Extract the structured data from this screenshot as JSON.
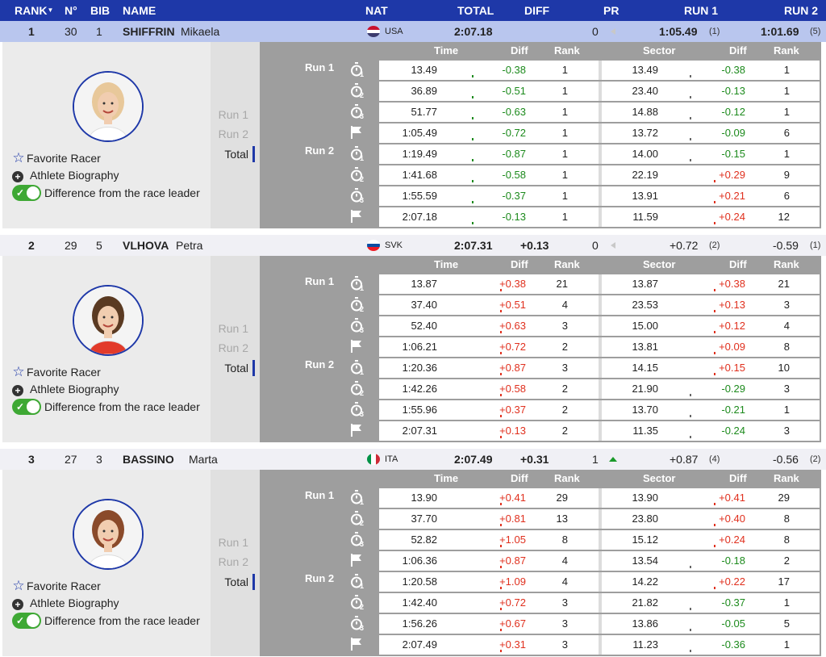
{
  "header": {
    "rank": "RANK",
    "rank_caret": "▼",
    "no": "N°",
    "bib": "BIB",
    "name": "NAME",
    "nat": "NAT",
    "total": "TOTAL",
    "diff": "DIFF",
    "pr": "PR",
    "run1": "RUN 1",
    "run2": "RUN 2"
  },
  "labels": {
    "favorite": "Favorite Racer",
    "bio": "Athlete Biography",
    "diff_toggle": "Difference from the race leader",
    "tab_run1": "Run 1",
    "tab_run2": "Run 2",
    "tab_total": "Total",
    "col_time": "Time",
    "col_diff": "Diff",
    "col_rank": "Rank",
    "col_sector": "Sector",
    "run1": "Run 1",
    "run2": "Run 2"
  },
  "colors": {
    "header_bg": "#1e38a8",
    "highlight_row": "#b9c6ee",
    "positive": "#e0301e",
    "negative": "#1c8a1c",
    "toggle": "#3ea834"
  },
  "athletes": [
    {
      "rank": "1",
      "no": "30",
      "bib": "1",
      "surname": "SHIFFRIN",
      "firstname": "Mikaela",
      "nat": "USA",
      "flag": [
        "#c8102e",
        "#ffffff",
        "#3c3b6e"
      ],
      "total": "2:07.18",
      "diff": "",
      "pr": "0",
      "pr_trend": "none",
      "run1": "1:05.49",
      "run1_rank": "(1)",
      "run2": "1:01.69",
      "run2_rank": "(5)",
      "highlight": true,
      "avatar_icon": "athlete-photo",
      "splits": [
        {
          "time": "13.49",
          "diff": "-0.38",
          "rank": "1",
          "sector": "13.49",
          "sdiff": "-0.38",
          "srank": "1"
        },
        {
          "time": "36.89",
          "diff": "-0.51",
          "rank": "1",
          "sector": "23.40",
          "sdiff": "-0.13",
          "srank": "1"
        },
        {
          "time": "51.77",
          "diff": "-0.63",
          "rank": "1",
          "sector": "14.88",
          "sdiff": "-0.12",
          "srank": "1"
        },
        {
          "time": "1:05.49",
          "diff": "-0.72",
          "rank": "1",
          "sector": "13.72",
          "sdiff": "-0.09",
          "srank": "6"
        },
        {
          "time": "1:19.49",
          "diff": "-0.87",
          "rank": "1",
          "sector": "14.00",
          "sdiff": "-0.15",
          "srank": "1"
        },
        {
          "time": "1:41.68",
          "diff": "-0.58",
          "rank": "1",
          "sector": "22.19",
          "sdiff": "+0.29",
          "srank": "9"
        },
        {
          "time": "1:55.59",
          "diff": "-0.37",
          "rank": "1",
          "sector": "13.91",
          "sdiff": "+0.21",
          "srank": "6"
        },
        {
          "time": "2:07.18",
          "diff": "-0.13",
          "rank": "1",
          "sector": "11.59",
          "sdiff": "+0.24",
          "srank": "12"
        }
      ]
    },
    {
      "rank": "2",
      "no": "29",
      "bib": "5",
      "surname": "VLHOVA",
      "firstname": "Petra",
      "nat": "SVK",
      "flag": [
        "#ffffff",
        "#0b4ea2",
        "#ee1c25"
      ],
      "total": "2:07.31",
      "diff": "+0.13",
      "pr": "0",
      "pr_trend": "none",
      "run1": "+0.72",
      "run1_rank": "(2)",
      "run2": "-0.59",
      "run2_rank": "(1)",
      "highlight": false,
      "avatar_icon": "athlete-photo",
      "splits": [
        {
          "time": "13.87",
          "diff": "+0.38",
          "rank": "21",
          "sector": "13.87",
          "sdiff": "+0.38",
          "srank": "21"
        },
        {
          "time": "37.40",
          "diff": "+0.51",
          "rank": "4",
          "sector": "23.53",
          "sdiff": "+0.13",
          "srank": "3"
        },
        {
          "time": "52.40",
          "diff": "+0.63",
          "rank": "3",
          "sector": "15.00",
          "sdiff": "+0.12",
          "srank": "4"
        },
        {
          "time": "1:06.21",
          "diff": "+0.72",
          "rank": "2",
          "sector": "13.81",
          "sdiff": "+0.09",
          "srank": "8"
        },
        {
          "time": "1:20.36",
          "diff": "+0.87",
          "rank": "3",
          "sector": "14.15",
          "sdiff": "+0.15",
          "srank": "10"
        },
        {
          "time": "1:42.26",
          "diff": "+0.58",
          "rank": "2",
          "sector": "21.90",
          "sdiff": "-0.29",
          "srank": "3"
        },
        {
          "time": "1:55.96",
          "diff": "+0.37",
          "rank": "2",
          "sector": "13.70",
          "sdiff": "-0.21",
          "srank": "1"
        },
        {
          "time": "2:07.31",
          "diff": "+0.13",
          "rank": "2",
          "sector": "11.35",
          "sdiff": "-0.24",
          "srank": "3"
        }
      ]
    },
    {
      "rank": "3",
      "no": "27",
      "bib": "3",
      "surname": "BASSINO",
      "firstname": "Marta",
      "nat": "ITA",
      "flag": [
        "#009246",
        "#ffffff",
        "#ce2b37"
      ],
      "total": "2:07.49",
      "diff": "+0.31",
      "pr": "1",
      "pr_trend": "up",
      "run1": "+0.87",
      "run1_rank": "(4)",
      "run2": "-0.56",
      "run2_rank": "(2)",
      "highlight": false,
      "avatar_icon": "athlete-photo",
      "splits": [
        {
          "time": "13.90",
          "diff": "+0.41",
          "rank": "29",
          "sector": "13.90",
          "sdiff": "+0.41",
          "srank": "29"
        },
        {
          "time": "37.70",
          "diff": "+0.81",
          "rank": "13",
          "sector": "23.80",
          "sdiff": "+0.40",
          "srank": "8"
        },
        {
          "time": "52.82",
          "diff": "+1.05",
          "rank": "8",
          "sector": "15.12",
          "sdiff": "+0.24",
          "srank": "8"
        },
        {
          "time": "1:06.36",
          "diff": "+0.87",
          "rank": "4",
          "sector": "13.54",
          "sdiff": "-0.18",
          "srank": "2"
        },
        {
          "time": "1:20.58",
          "diff": "+1.09",
          "rank": "4",
          "sector": "14.22",
          "sdiff": "+0.22",
          "srank": "17"
        },
        {
          "time": "1:42.40",
          "diff": "+0.72",
          "rank": "3",
          "sector": "21.82",
          "sdiff": "-0.37",
          "srank": "1"
        },
        {
          "time": "1:56.26",
          "diff": "+0.67",
          "rank": "3",
          "sector": "13.86",
          "sdiff": "-0.05",
          "srank": "5"
        },
        {
          "time": "2:07.49",
          "diff": "+0.31",
          "rank": "3",
          "sector": "11.23",
          "sdiff": "-0.36",
          "srank": "1"
        }
      ]
    }
  ],
  "split_icons": [
    {
      "icon": "stopwatch-icon",
      "num": "1"
    },
    {
      "icon": "stopwatch-icon",
      "num": "2"
    },
    {
      "icon": "stopwatch-icon",
      "num": "3"
    },
    {
      "icon": "finish-flag-icon",
      "num": ""
    },
    {
      "icon": "stopwatch-icon",
      "num": "1"
    },
    {
      "icon": "stopwatch-icon",
      "num": "2"
    },
    {
      "icon": "stopwatch-icon",
      "num": "3"
    },
    {
      "icon": "finish-flag-icon",
      "num": ""
    }
  ]
}
